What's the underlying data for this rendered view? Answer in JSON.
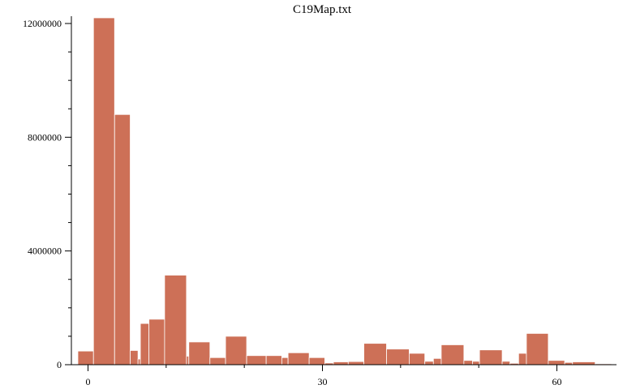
{
  "chart_data": {
    "type": "bar",
    "title": "C19Map.txt",
    "xlabel": "",
    "ylabel": "",
    "xlim": [
      -1.5,
      67
    ],
    "ylim": [
      0,
      12200000
    ],
    "x_ticks": [
      0,
      30,
      60
    ],
    "x_minor_ticks": [
      10,
      20,
      40,
      50
    ],
    "y_ticks": [
      0,
      4000000,
      8000000,
      12000000
    ],
    "y_tick_labels": [
      "0",
      "4000000",
      "8000000",
      "12000000"
    ],
    "y_minor_step": 1000000,
    "bar_color": "#cd7057",
    "bars": [
      {
        "x0": -1.3,
        "x1": 0.7,
        "value": 480000
      },
      {
        "x0": 0.7,
        "x1": 3.4,
        "value": 12200000
      },
      {
        "x0": 3.4,
        "x1": 5.4,
        "value": 8800000
      },
      {
        "x0": 5.4,
        "x1": 6.4,
        "value": 500000
      },
      {
        "x0": 6.4,
        "x1": 6.7,
        "value": 200000
      },
      {
        "x0": 6.7,
        "x1": 7.8,
        "value": 1450000
      },
      {
        "x0": 7.8,
        "x1": 9.8,
        "value": 1600000
      },
      {
        "x0": 9.8,
        "x1": 12.6,
        "value": 3150000
      },
      {
        "x0": 12.6,
        "x1": 12.9,
        "value": 300000
      },
      {
        "x0": 12.9,
        "x1": 15.6,
        "value": 800000
      },
      {
        "x0": 15.6,
        "x1": 17.6,
        "value": 250000
      },
      {
        "x0": 17.6,
        "x1": 20.3,
        "value": 1000000
      },
      {
        "x0": 20.3,
        "x1": 22.8,
        "value": 320000
      },
      {
        "x0": 22.8,
        "x1": 24.8,
        "value": 320000
      },
      {
        "x0": 24.8,
        "x1": 25.6,
        "value": 250000
      },
      {
        "x0": 25.6,
        "x1": 28.3,
        "value": 420000
      },
      {
        "x0": 28.3,
        "x1": 30.3,
        "value": 250000
      },
      {
        "x0": 30.3,
        "x1": 31.4,
        "value": 60000
      },
      {
        "x0": 31.4,
        "x1": 33.3,
        "value": 100000
      },
      {
        "x0": 33.3,
        "x1": 35.3,
        "value": 110000
      },
      {
        "x0": 35.3,
        "x1": 38.2,
        "value": 750000
      },
      {
        "x0": 38.2,
        "x1": 41.1,
        "value": 550000
      },
      {
        "x0": 41.1,
        "x1": 43.1,
        "value": 400000
      },
      {
        "x0": 43.1,
        "x1": 44.2,
        "value": 120000
      },
      {
        "x0": 44.2,
        "x1": 45.2,
        "value": 220000
      },
      {
        "x0": 45.2,
        "x1": 48.1,
        "value": 700000
      },
      {
        "x0": 48.1,
        "x1": 49.2,
        "value": 150000
      },
      {
        "x0": 49.2,
        "x1": 50.1,
        "value": 120000
      },
      {
        "x0": 50.1,
        "x1": 53.0,
        "value": 520000
      },
      {
        "x0": 53.0,
        "x1": 54.0,
        "value": 120000
      },
      {
        "x0": 54.0,
        "x1": 55.1,
        "value": 50000
      },
      {
        "x0": 55.1,
        "x1": 56.1,
        "value": 400000
      },
      {
        "x0": 56.1,
        "x1": 58.9,
        "value": 1100000
      },
      {
        "x0": 58.9,
        "x1": 61.0,
        "value": 150000
      },
      {
        "x0": 61.0,
        "x1": 62.0,
        "value": 80000
      },
      {
        "x0": 62.0,
        "x1": 64.9,
        "value": 100000
      },
      {
        "x0": 64.9,
        "x1": 67.0,
        "value": 30000
      }
    ]
  }
}
